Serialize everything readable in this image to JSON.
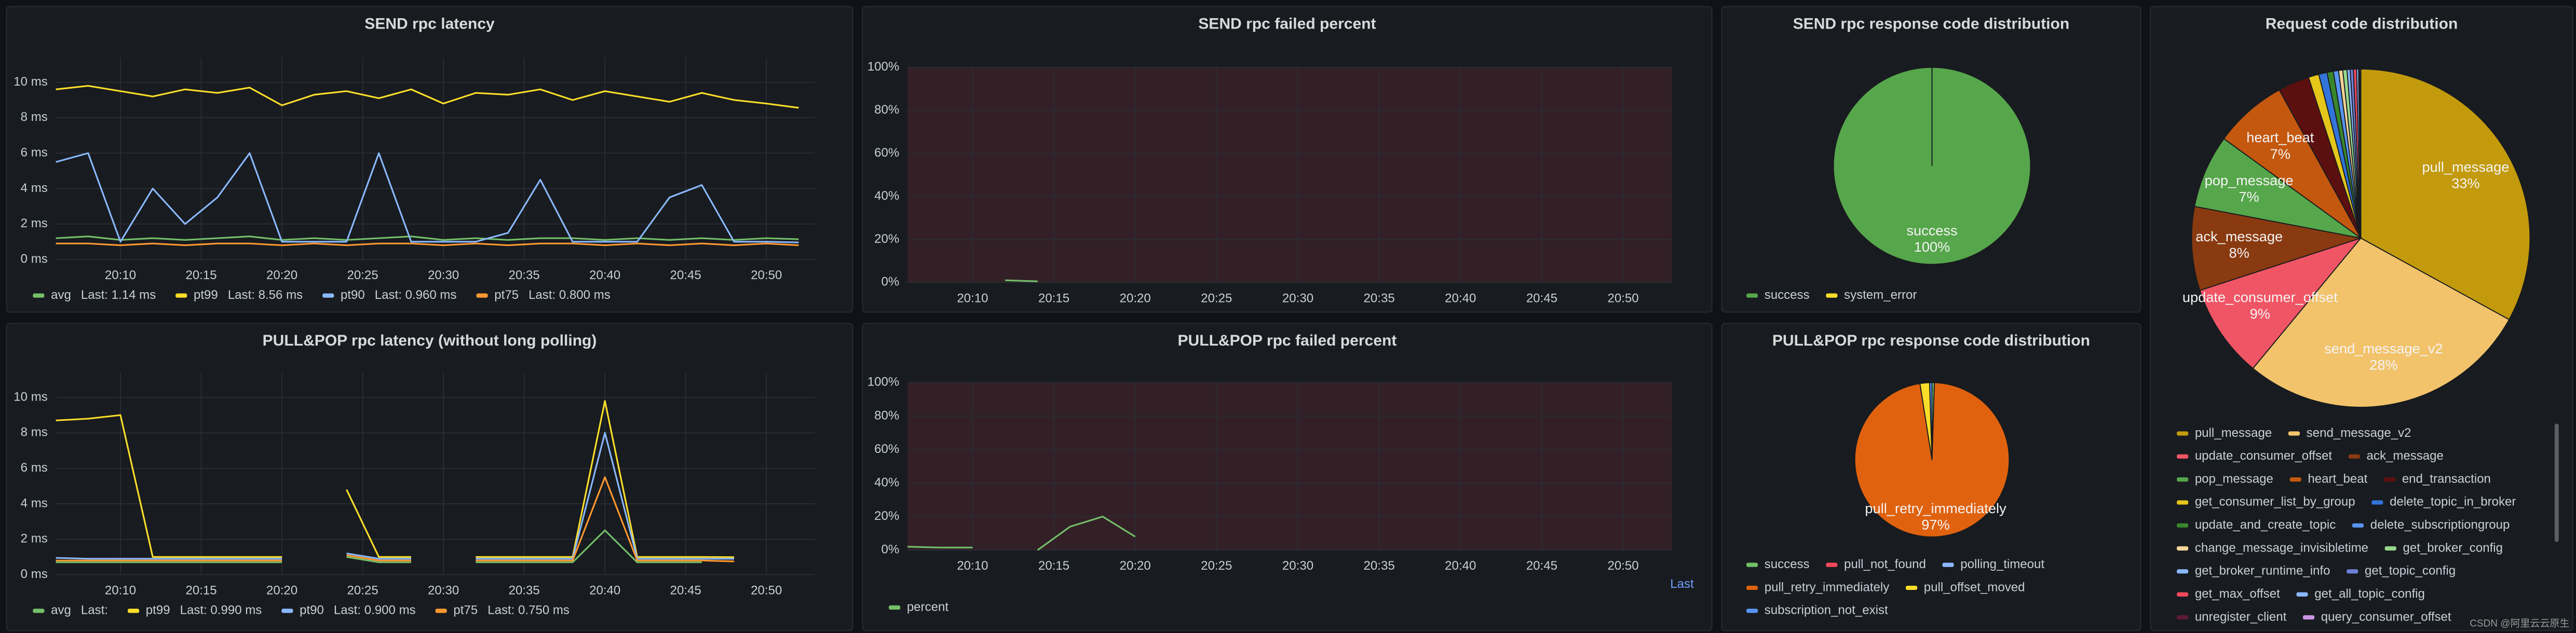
{
  "watermark": "CSDN @阿里云云原生",
  "chart_data": [
    {
      "type": "line",
      "title": "SEND rpc latency",
      "x": [
        "20:06",
        "20:08",
        "20:10",
        "20:12",
        "20:14",
        "20:16",
        "20:18",
        "20:20",
        "20:22",
        "20:24",
        "20:26",
        "20:28",
        "20:30",
        "20:32",
        "20:34",
        "20:36",
        "20:38",
        "20:40",
        "20:42",
        "20:44",
        "20:46",
        "20:48",
        "20:50",
        "20:52"
      ],
      "xlim": [
        "20:06",
        "20:53"
      ],
      "xticks": [
        "20:10",
        "20:15",
        "20:20",
        "20:25",
        "20:30",
        "20:35",
        "20:40",
        "20:45",
        "20:50"
      ],
      "ylim": [
        0,
        11.4
      ],
      "yticks": [
        {
          "value": 0,
          "label": "0 ms"
        },
        {
          "value": 2,
          "label": "2 ms"
        },
        {
          "value": 4,
          "label": "4 ms"
        },
        {
          "value": 6,
          "label": "6 ms"
        },
        {
          "value": 8,
          "label": "8 ms"
        },
        {
          "value": 10,
          "label": "10 ms"
        }
      ],
      "grid": true,
      "legend": true,
      "series": [
        {
          "name": "avg",
          "color": "#73bf69",
          "last_label": "Last: 1.14 ms",
          "values": [
            1.2,
            1.3,
            1.1,
            1.2,
            1.1,
            1.2,
            1.3,
            1.1,
            1.2,
            1.1,
            1.2,
            1.3,
            1.1,
            1.2,
            1.1,
            1.2,
            1.2,
            1.1,
            1.2,
            1.1,
            1.2,
            1.1,
            1.2,
            1.14
          ]
        },
        {
          "name": "pt99",
          "color": "#fade2a",
          "last_label": "Last: 8.56 ms",
          "values": [
            9.6,
            9.8,
            9.5,
            9.2,
            9.6,
            9.4,
            9.7,
            8.7,
            9.3,
            9.5,
            9.1,
            9.6,
            8.8,
            9.4,
            9.3,
            9.6,
            9.0,
            9.5,
            9.2,
            8.9,
            9.4,
            9.0,
            8.8,
            8.56
          ]
        },
        {
          "name": "pt90",
          "color": "#8ab8ff",
          "last_label": "Last: 0.960 ms",
          "values": [
            5.5,
            6.0,
            1.0,
            4.0,
            2.0,
            3.5,
            6.0,
            1.0,
            1.0,
            1.0,
            6.0,
            1.0,
            1.0,
            1.0,
            1.5,
            4.5,
            1.0,
            1.0,
            1.0,
            3.5,
            4.2,
            1.0,
            1.0,
            0.96
          ]
        },
        {
          "name": "pt75",
          "color": "#ff9830",
          "last_label": "Last: 0.800 ms",
          "values": [
            0.9,
            0.9,
            0.8,
            0.9,
            0.8,
            0.9,
            0.9,
            0.8,
            0.9,
            0.8,
            0.9,
            0.9,
            0.8,
            0.9,
            0.8,
            0.9,
            0.9,
            0.8,
            0.9,
            0.8,
            0.9,
            0.8,
            0.9,
            0.8
          ]
        }
      ]
    },
    {
      "type": "line",
      "title": "SEND rpc failed percent",
      "x": [
        "20:06",
        "20:08",
        "20:10",
        "20:12",
        "20:14",
        "20:16",
        "20:18",
        "20:20",
        "20:22",
        "20:24",
        "20:26",
        "20:28",
        "20:30",
        "20:32",
        "20:34",
        "20:36",
        "20:38",
        "20:40",
        "20:42",
        "20:44",
        "20:46",
        "20:48",
        "20:50",
        "20:52"
      ],
      "xlim": [
        "20:06",
        "20:53"
      ],
      "xticks": [
        "20:10",
        "20:15",
        "20:20",
        "20:25",
        "20:30",
        "20:35",
        "20:40",
        "20:45",
        "20:50"
      ],
      "ylim": [
        0,
        100
      ],
      "yticks": [
        {
          "value": 0,
          "label": "0%"
        },
        {
          "value": 20,
          "label": "20%"
        },
        {
          "value": 40,
          "label": "40%"
        },
        {
          "value": 60,
          "label": "60%"
        },
        {
          "value": 80,
          "label": "80%"
        },
        {
          "value": 100,
          "label": "100%"
        }
      ],
      "grid": true,
      "legend": false,
      "series": [
        {
          "name": "percent",
          "color": "#73bf69",
          "values": [
            null,
            null,
            null,
            1.0,
            0.5,
            null,
            null,
            null,
            null,
            null,
            null,
            null,
            null,
            null,
            null,
            null,
            null,
            null,
            null,
            null,
            null,
            null,
            null,
            null
          ]
        }
      ]
    },
    {
      "type": "pie",
      "title": "SEND rpc response code distribution",
      "categories": [
        "success",
        "system_error"
      ],
      "values": [
        100,
        0
      ],
      "value_labels": [
        "100%",
        null
      ],
      "colors": [
        "#56a64b",
        "#fade2a"
      ],
      "legend": "bottom"
    },
    {
      "type": "pie",
      "title": "Request code distribution",
      "categories": [
        "pull_message",
        "send_message_v2",
        "update_consumer_offset",
        "ack_message",
        "pop_message",
        "heart_beat",
        "end_transaction",
        "get_consumer_list_by_group",
        "delete_topic_in_broker",
        "update_and_create_topic",
        "delete_subscriptiongroup",
        "change_message_invisibletime",
        "get_broker_config",
        "get_broker_runtime_info",
        "get_topic_config",
        "get_max_offset",
        "get_all_topic_config",
        "unregister_client",
        "query_consumer_offset"
      ],
      "values": [
        33,
        28,
        9,
        8,
        7,
        7,
        3,
        1,
        0.8,
        0.6,
        0.5,
        0.4,
        0.4,
        0.3,
        0.3,
        0.3,
        0.2,
        0.1,
        0.1
      ],
      "value_labels": [
        "33%",
        "28%",
        "9%",
        "8%",
        "7%",
        "7%",
        null,
        null,
        null,
        null,
        null,
        null,
        null,
        null,
        null,
        null,
        null,
        null,
        null
      ],
      "colors": [
        "#c29a0c",
        "#f2c36b",
        "#f05565",
        "#8a3a10",
        "#56a64b",
        "#c4580f",
        "#5c0f0f",
        "#e5c61a",
        "#3274d9",
        "#37872d",
        "#5794f2",
        "#f4d598",
        "#96d98d",
        "#8ab8ff",
        "#6e7fd8",
        "#f2495c",
        "#8ab8ff",
        "#5c1a3a",
        "#ca95e5"
      ],
      "legend": "bottom"
    },
    {
      "type": "line",
      "title": "PULL&POP rpc latency (without long polling)",
      "x": [
        "20:06",
        "20:08",
        "20:10",
        "20:12",
        "20:14",
        "20:16",
        "20:18",
        "20:20",
        "20:22",
        "20:24",
        "20:26",
        "20:28",
        "20:30",
        "20:32",
        "20:34",
        "20:36",
        "20:38",
        "20:40",
        "20:42",
        "20:44",
        "20:46",
        "20:48",
        "20:50",
        "20:52"
      ],
      "xlim": [
        "20:06",
        "20:53"
      ],
      "xticks": [
        "20:10",
        "20:15",
        "20:20",
        "20:25",
        "20:30",
        "20:35",
        "20:40",
        "20:45",
        "20:50"
      ],
      "ylim": [
        0,
        11.4
      ],
      "yticks": [
        {
          "value": 0,
          "label": "0 ms"
        },
        {
          "value": 2,
          "label": "2 ms"
        },
        {
          "value": 4,
          "label": "4 ms"
        },
        {
          "value": 6,
          "label": "6 ms"
        },
        {
          "value": 8,
          "label": "8 ms"
        },
        {
          "value": 10,
          "label": "10 ms"
        }
      ],
      "grid": true,
      "legend": true,
      "series": [
        {
          "name": "avg",
          "color": "#73bf69",
          "last_label": "Last:",
          "values": [
            0.7,
            0.7,
            0.7,
            0.7,
            0.7,
            0.7,
            0.7,
            0.7,
            null,
            1.0,
            0.7,
            0.7,
            null,
            0.7,
            0.7,
            0.7,
            0.7,
            2.5,
            0.7,
            0.7,
            0.7,
            null,
            null,
            null
          ]
        },
        {
          "name": "pt99",
          "color": "#fade2a",
          "last_label": "Last: 0.990 ms",
          "values": [
            8.7,
            8.8,
            9.0,
            1.0,
            1.0,
            1.0,
            1.0,
            1.0,
            null,
            4.8,
            1.0,
            1.0,
            null,
            1.0,
            1.0,
            1.0,
            1.0,
            9.8,
            1.0,
            1.0,
            1.0,
            0.99,
            null,
            null
          ]
        },
        {
          "name": "pt90",
          "color": "#8ab8ff",
          "last_label": "Last: 0.900 ms",
          "values": [
            0.95,
            0.9,
            0.9,
            0.9,
            0.9,
            0.9,
            0.9,
            0.9,
            null,
            1.2,
            0.9,
            0.9,
            null,
            0.9,
            0.9,
            0.9,
            0.9,
            8.0,
            0.9,
            0.9,
            0.9,
            0.9,
            null,
            null
          ]
        },
        {
          "name": "pt75",
          "color": "#ff9830",
          "last_label": "Last: 0.750 ms",
          "values": [
            0.8,
            0.8,
            0.8,
            0.8,
            0.8,
            0.8,
            0.8,
            0.8,
            null,
            1.1,
            0.8,
            0.8,
            null,
            0.8,
            0.8,
            0.8,
            0.8,
            5.5,
            0.8,
            0.8,
            0.8,
            0.75,
            null,
            null
          ]
        }
      ]
    },
    {
      "type": "line",
      "title": "PULL&POP rpc failed percent",
      "x": [
        "20:06",
        "20:08",
        "20:10",
        "20:12",
        "20:14",
        "20:16",
        "20:18",
        "20:20",
        "20:22",
        "20:24",
        "20:26",
        "20:28",
        "20:30",
        "20:32",
        "20:34",
        "20:36",
        "20:38",
        "20:40",
        "20:42",
        "20:44",
        "20:46",
        "20:48",
        "20:50",
        "20:52"
      ],
      "xlim": [
        "20:06",
        "20:53"
      ],
      "xticks": [
        "20:10",
        "20:15",
        "20:20",
        "20:25",
        "20:30",
        "20:35",
        "20:40",
        "20:45",
        "20:50"
      ],
      "ylim": [
        0,
        100
      ],
      "yticks": [
        {
          "value": 0,
          "label": "0%"
        },
        {
          "value": 20,
          "label": "20%"
        },
        {
          "value": 40,
          "label": "40%"
        },
        {
          "value": 60,
          "label": "60%"
        },
        {
          "value": 80,
          "label": "80%"
        },
        {
          "value": 100,
          "label": "100%"
        }
      ],
      "grid": true,
      "legend": true,
      "legend_header": "Last",
      "series": [
        {
          "name": "percent",
          "color": "#73bf69",
          "values": [
            2,
            1.5,
            1.5,
            null,
            0,
            14,
            20,
            8,
            null,
            null,
            null,
            null,
            null,
            null,
            null,
            null,
            null,
            null,
            null,
            null,
            null,
            null,
            null,
            null
          ]
        }
      ]
    },
    {
      "type": "pie",
      "title": "PULL&POP rpc response code distribution",
      "categories": [
        "success",
        "pull_not_found",
        "polling_timeout",
        "pull_retry_immediately",
        "pull_offset_moved",
        "subscription_not_exist"
      ],
      "values": [
        0.5,
        0,
        0,
        97,
        2,
        0.5
      ],
      "value_labels": [
        null,
        null,
        null,
        "97%",
        null,
        null
      ],
      "colors": [
        "#73bf69",
        "#f2495c",
        "#8ab8ff",
        "#e0620f",
        "#fade2a",
        "#5794f2"
      ],
      "legend": "bottom"
    }
  ]
}
